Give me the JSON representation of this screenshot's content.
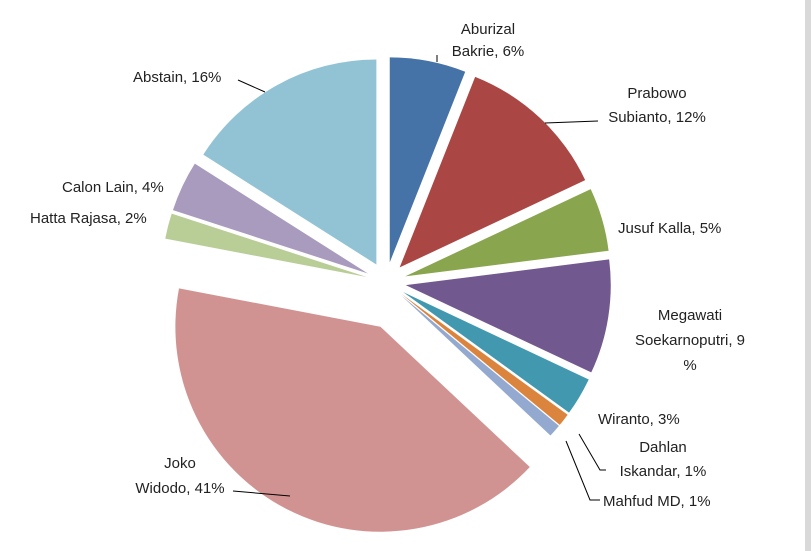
{
  "chart_data": {
    "type": "pie",
    "title": "",
    "exploded": true,
    "slices": [
      {
        "name": "Aburizal Bakrie",
        "value": 6,
        "color": "#4572A7",
        "label_lines": [
          "Aburizal",
          "Bakrie, 6%"
        ]
      },
      {
        "name": "Prabowo Subianto",
        "value": 12,
        "color": "#AA4643",
        "label_lines": [
          "Prabowo",
          "Subianto, 12%"
        ]
      },
      {
        "name": "Jusuf Kalla",
        "value": 5,
        "color": "#89A54E",
        "label_lines": [
          "Jusuf Kalla, 5%"
        ]
      },
      {
        "name": "Megawati Soekarnoputri",
        "value": 9,
        "color": "#71588F",
        "label_lines": [
          "Megawati",
          "Soekarnoputri, 9",
          "%"
        ]
      },
      {
        "name": "Wiranto",
        "value": 3,
        "color": "#4198AF",
        "label_lines": [
          "Wiranto, 3%"
        ]
      },
      {
        "name": "Dahlan Iskandar",
        "value": 1,
        "color": "#DB843D",
        "label_lines": [
          "Dahlan",
          "Iskandar, 1%"
        ]
      },
      {
        "name": "Mahfud MD",
        "value": 1,
        "color": "#93A9CF",
        "label_lines": [
          "Mahfud MD, 1%"
        ]
      },
      {
        "name": "Joko Widodo",
        "value": 41,
        "color": "#D19392",
        "label_lines": [
          "Joko",
          "Widodo, 41%"
        ]
      },
      {
        "name": "Hatta Rajasa",
        "value": 2,
        "color": "#B9CD96",
        "label_lines": [
          "Hatta Rajasa, 2%"
        ]
      },
      {
        "name": "Calon Lain",
        "value": 4,
        "color": "#A99BBD",
        "label_lines": [
          "Calon Lain, 4%"
        ]
      },
      {
        "name": "Abstain",
        "value": 16,
        "color": "#92C3D5",
        "label_lines": [
          "Abstain, 16%"
        ]
      }
    ]
  }
}
